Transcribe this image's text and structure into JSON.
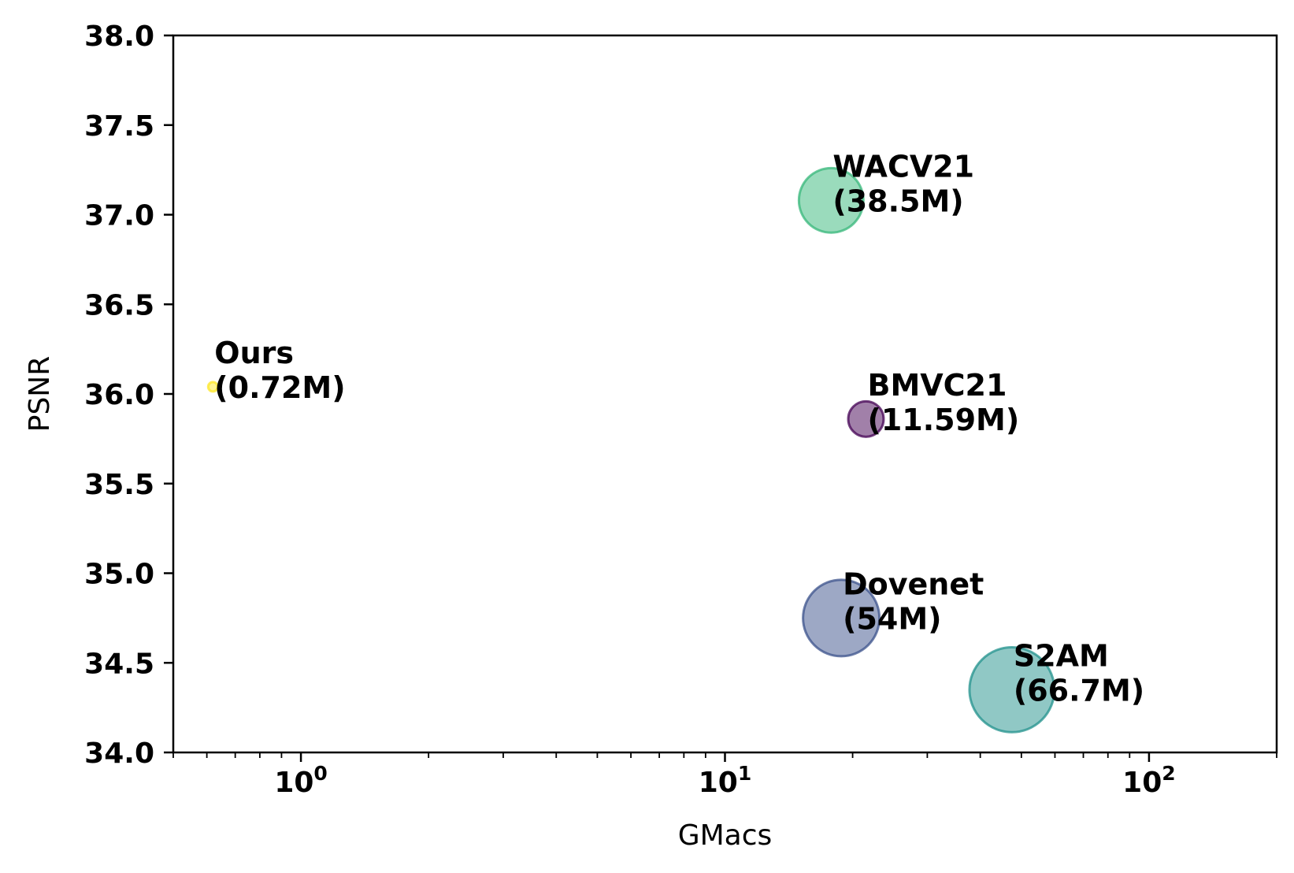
{
  "chart_data": {
    "type": "scatter",
    "title": "",
    "xlabel": "GMacs",
    "ylabel": "PSNR",
    "xscale": "log",
    "xlim": [
      0.5,
      200
    ],
    "ylim": [
      34.0,
      38.0
    ],
    "grid": false,
    "legend": "none",
    "y_ticks": [
      "34.0",
      "34.5",
      "35.0",
      "35.5",
      "36.0",
      "36.5",
      "37.0",
      "37.5",
      "38.0"
    ],
    "x_ticks": [
      {
        "base": "10",
        "exp": "0",
        "value": 1
      },
      {
        "base": "10",
        "exp": "1",
        "value": 10
      },
      {
        "base": "10",
        "exp": "2",
        "value": 100
      }
    ],
    "points": [
      {
        "name": "Ours",
        "params": "(0.72M)",
        "x": 0.62,
        "y": 36.04,
        "size_m": 0.72,
        "color": "#fde725"
      },
      {
        "name": "WACV21",
        "params": "(38.5M)",
        "x": 17.8,
        "y": 37.08,
        "size_m": 38.5,
        "color": "#35b779"
      },
      {
        "name": "BMVC21",
        "params": "(11.59M)",
        "x": 21.5,
        "y": 35.86,
        "size_m": 11.59,
        "color": "#440154"
      },
      {
        "name": "Dovenet",
        "params": "(54M)",
        "x": 18.8,
        "y": 34.75,
        "size_m": 54,
        "color": "#3b528b"
      },
      {
        "name": "S2AM",
        "params": "(66.7M)",
        "x": 47.5,
        "y": 34.35,
        "size_m": 66.7,
        "color": "#21918c"
      }
    ]
  }
}
